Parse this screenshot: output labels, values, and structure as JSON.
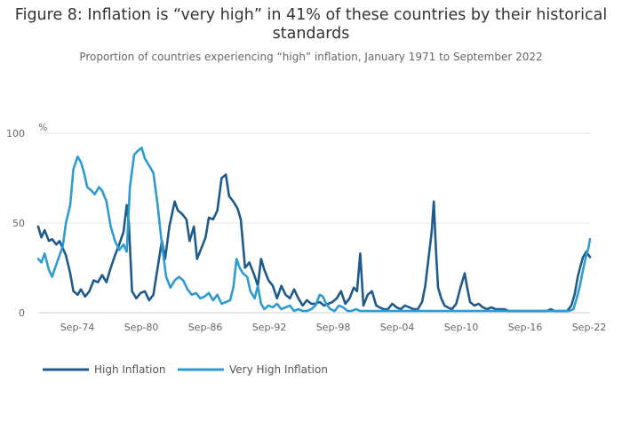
{
  "chart_data": {
    "type": "line",
    "title": "Figure 8: Inflation is “very high” in 41% of these countries by their historical standards",
    "subtitle": "Proportion of countries experiencing “high” inflation, January 1971 to September 2022",
    "ylabel": "%",
    "xlabel": "",
    "ylim": [
      0,
      100
    ],
    "xlim": [
      1971.0,
      2022.75
    ],
    "yticks": [
      0,
      50,
      100
    ],
    "xticks": [
      {
        "label": "Sep-74",
        "value": 1974.67
      },
      {
        "label": "Sep-80",
        "value": 1980.67
      },
      {
        "label": "Sep-86",
        "value": 1986.67
      },
      {
        "label": "Sep-92",
        "value": 1992.67
      },
      {
        "label": "Sep-98",
        "value": 1998.67
      },
      {
        "label": "Sep-04",
        "value": 2004.67
      },
      {
        "label": "Sep-10",
        "value": 2010.67
      },
      {
        "label": "Sep-16",
        "value": 2016.67
      },
      {
        "label": "Sep-22",
        "value": 2022.67
      }
    ],
    "grid": "horizontal",
    "legend_position": "bottom-left",
    "series": [
      {
        "name": "High Inflation",
        "color": "#1f5a8c",
        "points": [
          [
            1971.0,
            48
          ],
          [
            1971.3,
            42
          ],
          [
            1971.6,
            46
          ],
          [
            1972.0,
            40
          ],
          [
            1972.3,
            41
          ],
          [
            1972.7,
            38
          ],
          [
            1973.0,
            40
          ],
          [
            1973.3,
            36
          ],
          [
            1973.6,
            32
          ],
          [
            1974.0,
            22
          ],
          [
            1974.3,
            12
          ],
          [
            1974.7,
            10
          ],
          [
            1975.0,
            13
          ],
          [
            1975.4,
            9
          ],
          [
            1975.8,
            12
          ],
          [
            1976.2,
            18
          ],
          [
            1976.6,
            17
          ],
          [
            1977.0,
            21
          ],
          [
            1977.4,
            17
          ],
          [
            1977.8,
            25
          ],
          [
            1978.2,
            32
          ],
          [
            1978.6,
            38
          ],
          [
            1979.0,
            45
          ],
          [
            1979.3,
            60
          ],
          [
            1979.5,
            50
          ],
          [
            1979.8,
            12
          ],
          [
            1980.2,
            8
          ],
          [
            1980.6,
            11
          ],
          [
            1981.0,
            12
          ],
          [
            1981.4,
            7
          ],
          [
            1981.8,
            10
          ],
          [
            1982.2,
            25
          ],
          [
            1982.6,
            40
          ],
          [
            1982.9,
            30
          ],
          [
            1983.3,
            48
          ],
          [
            1983.8,
            62
          ],
          [
            1984.1,
            57
          ],
          [
            1984.5,
            55
          ],
          [
            1984.9,
            52
          ],
          [
            1985.2,
            40
          ],
          [
            1985.6,
            48
          ],
          [
            1985.9,
            30
          ],
          [
            1986.3,
            36
          ],
          [
            1986.7,
            42
          ],
          [
            1987.0,
            53
          ],
          [
            1987.4,
            52
          ],
          [
            1987.8,
            57
          ],
          [
            1988.2,
            75
          ],
          [
            1988.6,
            77
          ],
          [
            1988.9,
            65
          ],
          [
            1989.3,
            62
          ],
          [
            1989.7,
            58
          ],
          [
            1990.0,
            52
          ],
          [
            1990.4,
            25
          ],
          [
            1990.8,
            28
          ],
          [
            1991.2,
            22
          ],
          [
            1991.6,
            15
          ],
          [
            1991.9,
            30
          ],
          [
            1992.2,
            24
          ],
          [
            1992.6,
            18
          ],
          [
            1993.0,
            15
          ],
          [
            1993.4,
            8
          ],
          [
            1993.8,
            15
          ],
          [
            1994.2,
            10
          ],
          [
            1994.6,
            8
          ],
          [
            1995.0,
            13
          ],
          [
            1995.4,
            8
          ],
          [
            1995.8,
            4
          ],
          [
            1996.2,
            7
          ],
          [
            1996.6,
            5
          ],
          [
            1997.0,
            5
          ],
          [
            1997.4,
            6
          ],
          [
            1997.8,
            4
          ],
          [
            1998.2,
            5
          ],
          [
            1998.6,
            6
          ],
          [
            1999.0,
            8
          ],
          [
            1999.4,
            12
          ],
          [
            1999.8,
            5
          ],
          [
            2000.2,
            8
          ],
          [
            2000.6,
            14
          ],
          [
            2000.9,
            12
          ],
          [
            2001.2,
            33
          ],
          [
            2001.5,
            4
          ],
          [
            2001.9,
            10
          ],
          [
            2002.3,
            12
          ],
          [
            2002.7,
            4
          ],
          [
            2003.0,
            3
          ],
          [
            2003.4,
            2
          ],
          [
            2003.8,
            2
          ],
          [
            2004.2,
            5
          ],
          [
            2004.6,
            3
          ],
          [
            2005.0,
            2
          ],
          [
            2005.4,
            4
          ],
          [
            2005.8,
            3
          ],
          [
            2006.2,
            2
          ],
          [
            2006.6,
            2
          ],
          [
            2007.0,
            6
          ],
          [
            2007.3,
            15
          ],
          [
            2007.6,
            30
          ],
          [
            2007.9,
            45
          ],
          [
            2008.1,
            62
          ],
          [
            2008.3,
            35
          ],
          [
            2008.5,
            14
          ],
          [
            2008.8,
            8
          ],
          [
            2009.1,
            4
          ],
          [
            2009.4,
            3
          ],
          [
            2009.8,
            2
          ],
          [
            2010.2,
            5
          ],
          [
            2010.6,
            14
          ],
          [
            2011.0,
            22
          ],
          [
            2011.2,
            15
          ],
          [
            2011.5,
            6
          ],
          [
            2011.9,
            4
          ],
          [
            2012.3,
            5
          ],
          [
            2012.7,
            3
          ],
          [
            2013.1,
            2
          ],
          [
            2013.5,
            3
          ],
          [
            2013.9,
            2
          ],
          [
            2014.3,
            2
          ],
          [
            2014.7,
            2
          ],
          [
            2015.1,
            1
          ],
          [
            2015.5,
            1
          ],
          [
            2015.9,
            1
          ],
          [
            2016.3,
            1
          ],
          [
            2016.7,
            1
          ],
          [
            2017.1,
            1
          ],
          [
            2017.5,
            1
          ],
          [
            2017.9,
            1
          ],
          [
            2018.3,
            1
          ],
          [
            2018.7,
            1
          ],
          [
            2019.1,
            2
          ],
          [
            2019.4,
            1
          ],
          [
            2019.8,
            1
          ],
          [
            2020.2,
            1
          ],
          [
            2020.6,
            1
          ],
          [
            2021.0,
            4
          ],
          [
            2021.3,
            10
          ],
          [
            2021.6,
            20
          ],
          [
            2021.9,
            27
          ],
          [
            2022.1,
            31
          ],
          [
            2022.4,
            34
          ],
          [
            2022.75,
            31
          ]
        ]
      },
      {
        "name": "Very High Inflation",
        "color": "#2e9bd1",
        "points": [
          [
            1971.0,
            30
          ],
          [
            1971.3,
            28
          ],
          [
            1971.6,
            33
          ],
          [
            1972.0,
            24
          ],
          [
            1972.3,
            20
          ],
          [
            1972.7,
            27
          ],
          [
            1973.0,
            32
          ],
          [
            1973.3,
            37
          ],
          [
            1973.6,
            50
          ],
          [
            1974.0,
            60
          ],
          [
            1974.3,
            80
          ],
          [
            1974.7,
            87
          ],
          [
            1975.0,
            84
          ],
          [
            1975.3,
            78
          ],
          [
            1975.6,
            70
          ],
          [
            1976.0,
            68
          ],
          [
            1976.3,
            66
          ],
          [
            1976.7,
            70
          ],
          [
            1977.0,
            68
          ],
          [
            1977.4,
            62
          ],
          [
            1977.8,
            48
          ],
          [
            1978.2,
            40
          ],
          [
            1978.6,
            35
          ],
          [
            1979.0,
            38
          ],
          [
            1979.3,
            34
          ],
          [
            1979.6,
            70
          ],
          [
            1980.0,
            88
          ],
          [
            1980.3,
            90
          ],
          [
            1980.7,
            92
          ],
          [
            1981.0,
            86
          ],
          [
            1981.4,
            82
          ],
          [
            1981.8,
            78
          ],
          [
            1982.2,
            60
          ],
          [
            1982.6,
            38
          ],
          [
            1983.0,
            20
          ],
          [
            1983.4,
            14
          ],
          [
            1983.8,
            18
          ],
          [
            1984.2,
            20
          ],
          [
            1984.6,
            18
          ],
          [
            1985.0,
            13
          ],
          [
            1985.4,
            10
          ],
          [
            1985.8,
            11
          ],
          [
            1986.2,
            8
          ],
          [
            1986.6,
            9
          ],
          [
            1987.0,
            11
          ],
          [
            1987.4,
            7
          ],
          [
            1987.8,
            10
          ],
          [
            1988.2,
            5
          ],
          [
            1988.6,
            6
          ],
          [
            1989.0,
            7
          ],
          [
            1989.3,
            14
          ],
          [
            1989.6,
            30
          ],
          [
            1989.9,
            25
          ],
          [
            1990.2,
            22
          ],
          [
            1990.6,
            20
          ],
          [
            1990.9,
            12
          ],
          [
            1991.3,
            8
          ],
          [
            1991.6,
            15
          ],
          [
            1991.9,
            5
          ],
          [
            1992.2,
            2
          ],
          [
            1992.6,
            4
          ],
          [
            1993.0,
            3
          ],
          [
            1993.4,
            5
          ],
          [
            1993.8,
            2
          ],
          [
            1994.2,
            3
          ],
          [
            1994.6,
            4
          ],
          [
            1995.0,
            1
          ],
          [
            1995.4,
            2
          ],
          [
            1995.8,
            1
          ],
          [
            1996.2,
            1
          ],
          [
            1996.6,
            2
          ],
          [
            1997.0,
            4
          ],
          [
            1997.4,
            10
          ],
          [
            1997.7,
            9
          ],
          [
            1998.0,
            5
          ],
          [
            1998.4,
            2
          ],
          [
            1998.8,
            1
          ],
          [
            1999.2,
            4
          ],
          [
            1999.6,
            3
          ],
          [
            2000.0,
            1
          ],
          [
            2000.4,
            1
          ],
          [
            2000.8,
            2
          ],
          [
            2001.2,
            1
          ],
          [
            2001.6,
            1
          ],
          [
            2002.0,
            1
          ],
          [
            2002.5,
            1
          ],
          [
            2003.0,
            1
          ],
          [
            2004.0,
            1
          ],
          [
            2005.0,
            1
          ],
          [
            2006.0,
            1
          ],
          [
            2007.0,
            1
          ],
          [
            2008.0,
            1
          ],
          [
            2009.0,
            1
          ],
          [
            2010.0,
            1
          ],
          [
            2011.0,
            1
          ],
          [
            2012.0,
            1
          ],
          [
            2013.0,
            1
          ],
          [
            2014.0,
            1
          ],
          [
            2015.0,
            1
          ],
          [
            2016.0,
            1
          ],
          [
            2017.0,
            1
          ],
          [
            2018.0,
            1
          ],
          [
            2019.0,
            1
          ],
          [
            2020.0,
            1
          ],
          [
            2020.8,
            1
          ],
          [
            2021.2,
            2
          ],
          [
            2021.5,
            8
          ],
          [
            2021.8,
            15
          ],
          [
            2022.1,
            24
          ],
          [
            2022.4,
            32
          ],
          [
            2022.6,
            36
          ],
          [
            2022.75,
            41
          ]
        ]
      }
    ]
  }
}
